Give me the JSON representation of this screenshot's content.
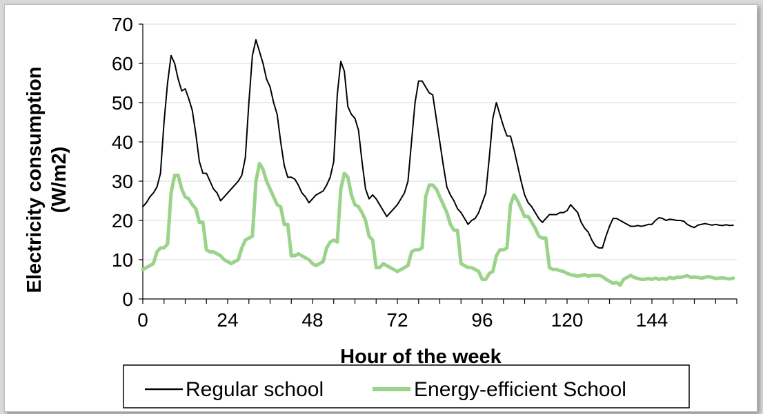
{
  "chart_data": {
    "type": "line",
    "title": "",
    "xlabel": "Hour of the week",
    "ylabel_line1": "Electricity consumption",
    "ylabel_line2": "(W/m2)",
    "xlim": [
      0,
      168
    ],
    "ylim": [
      0,
      70
    ],
    "x_ticks": [
      0,
      24,
      48,
      72,
      96,
      120,
      144
    ],
    "y_ticks": [
      0,
      10,
      20,
      30,
      40,
      50,
      60,
      70
    ],
    "grid": "horizontal",
    "legend_position": "bottom",
    "series": [
      {
        "name": "Regular school",
        "color": "#000000",
        "points": [
          [
            0,
            23.5
          ],
          [
            1,
            24.5
          ],
          [
            2,
            26
          ],
          [
            3,
            27
          ],
          [
            4,
            28.5
          ],
          [
            5,
            32
          ],
          [
            6,
            45
          ],
          [
            7,
            55
          ],
          [
            8,
            62
          ],
          [
            9,
            60
          ],
          [
            10,
            56
          ],
          [
            11,
            53
          ],
          [
            12,
            53.5
          ],
          [
            13,
            51
          ],
          [
            14,
            48
          ],
          [
            15,
            42
          ],
          [
            16,
            35
          ],
          [
            17,
            32
          ],
          [
            18,
            32
          ],
          [
            19,
            30
          ],
          [
            20,
            28
          ],
          [
            21,
            27
          ],
          [
            22,
            25
          ],
          [
            23,
            26
          ],
          [
            24,
            27
          ],
          [
            25,
            28
          ],
          [
            26,
            29
          ],
          [
            27,
            30
          ],
          [
            28,
            31.5
          ],
          [
            29,
            36
          ],
          [
            30,
            50
          ],
          [
            31,
            62
          ],
          [
            32,
            66
          ],
          [
            33,
            63
          ],
          [
            34,
            60
          ],
          [
            35,
            56
          ],
          [
            36,
            54
          ],
          [
            37,
            50
          ],
          [
            38,
            47
          ],
          [
            39,
            40
          ],
          [
            40,
            34
          ],
          [
            41,
            31
          ],
          [
            42,
            31
          ],
          [
            43,
            30.5
          ],
          [
            44,
            29
          ],
          [
            45,
            27
          ],
          [
            46,
            26
          ],
          [
            47,
            24.5
          ],
          [
            48,
            25.5
          ],
          [
            49,
            26.5
          ],
          [
            50,
            27
          ],
          [
            51,
            27.5
          ],
          [
            52,
            29
          ],
          [
            53,
            31
          ],
          [
            54,
            35
          ],
          [
            55,
            52
          ],
          [
            56,
            60.5
          ],
          [
            57,
            58
          ],
          [
            58,
            49
          ],
          [
            59,
            47
          ],
          [
            60,
            46
          ],
          [
            61,
            43
          ],
          [
            62,
            35
          ],
          [
            63,
            28
          ],
          [
            64,
            25.5
          ],
          [
            65,
            26.5
          ],
          [
            66,
            25.5
          ],
          [
            67,
            24
          ],
          [
            68,
            22.5
          ],
          [
            69,
            21
          ],
          [
            70,
            22
          ],
          [
            71,
            23
          ],
          [
            72,
            24
          ],
          [
            73,
            25.5
          ],
          [
            74,
            27
          ],
          [
            75,
            30
          ],
          [
            76,
            40
          ],
          [
            77,
            50
          ],
          [
            78,
            55.5
          ],
          [
            79,
            55.5
          ],
          [
            80,
            54
          ],
          [
            81,
            52.5
          ],
          [
            82,
            52
          ],
          [
            83,
            46
          ],
          [
            84,
            40
          ],
          [
            85,
            34
          ],
          [
            86,
            28.5
          ],
          [
            87,
            26.5
          ],
          [
            88,
            25
          ],
          [
            89,
            23
          ],
          [
            90,
            22
          ],
          [
            91,
            20.5
          ],
          [
            92,
            19
          ],
          [
            93,
            20
          ],
          [
            94,
            20.5
          ],
          [
            95,
            22
          ],
          [
            96,
            24.5
          ],
          [
            97,
            27
          ],
          [
            98,
            36
          ],
          [
            99,
            46
          ],
          [
            100,
            50
          ],
          [
            101,
            47
          ],
          [
            102,
            44
          ],
          [
            103,
            41.5
          ],
          [
            104,
            41.5
          ],
          [
            105,
            38
          ],
          [
            106,
            34
          ],
          [
            107,
            30
          ],
          [
            108,
            26.5
          ],
          [
            109,
            24.5
          ],
          [
            110,
            23.5
          ],
          [
            111,
            22
          ],
          [
            112,
            20.5
          ],
          [
            113,
            19.5
          ],
          [
            114,
            20.5
          ],
          [
            115,
            21.5
          ],
          [
            116,
            21.5
          ],
          [
            117,
            21.5
          ],
          [
            118,
            22
          ],
          [
            119,
            22
          ],
          [
            120,
            22.5
          ],
          [
            121,
            24
          ],
          [
            122,
            23
          ],
          [
            123,
            22
          ],
          [
            124,
            19.5
          ],
          [
            125,
            18
          ],
          [
            126,
            17
          ],
          [
            127,
            15
          ],
          [
            128,
            13.5
          ],
          [
            129,
            13
          ],
          [
            130,
            13
          ],
          [
            131,
            16
          ],
          [
            132,
            18.5
          ],
          [
            133,
            20.5
          ],
          [
            134,
            20.5
          ],
          [
            135,
            20
          ],
          [
            136,
            19.5
          ],
          [
            137,
            19
          ],
          [
            138,
            18.5
          ],
          [
            139,
            18.5
          ],
          [
            140,
            18.7
          ],
          [
            141,
            18.5
          ],
          [
            142,
            18.7
          ],
          [
            143,
            19
          ],
          [
            144,
            19
          ],
          [
            145,
            20
          ],
          [
            146,
            20.7
          ],
          [
            147,
            20.5
          ],
          [
            148,
            20
          ],
          [
            149,
            20.3
          ],
          [
            150,
            20.2
          ],
          [
            151,
            20
          ],
          [
            152,
            20
          ],
          [
            153,
            19.8
          ],
          [
            154,
            19
          ],
          [
            155,
            18.5
          ],
          [
            156,
            18.2
          ],
          [
            157,
            18.8
          ],
          [
            158,
            19
          ],
          [
            159,
            19.2
          ],
          [
            160,
            19
          ],
          [
            161,
            18.8
          ],
          [
            162,
            19
          ],
          [
            163,
            18.8
          ],
          [
            164,
            18.7
          ],
          [
            165,
            18.9
          ],
          [
            166,
            18.7
          ],
          [
            167,
            18.8
          ]
        ]
      },
      {
        "name": "Energy-efficient School",
        "color": "#9bd38a",
        "points": [
          [
            0,
            7.5
          ],
          [
            1,
            8
          ],
          [
            2,
            8.5
          ],
          [
            3,
            9
          ],
          [
            4,
            12
          ],
          [
            5,
            13
          ],
          [
            6,
            13
          ],
          [
            7,
            14
          ],
          [
            8,
            27
          ],
          [
            9,
            31.5
          ],
          [
            10,
            31.5
          ],
          [
            11,
            28
          ],
          [
            12,
            26
          ],
          [
            13,
            25.5
          ],
          [
            14,
            24
          ],
          [
            15,
            23
          ],
          [
            16,
            19.5
          ],
          [
            17,
            19.5
          ],
          [
            18,
            12.5
          ],
          [
            19,
            12
          ],
          [
            20,
            12
          ],
          [
            21,
            11.5
          ],
          [
            22,
            11
          ],
          [
            23,
            10
          ],
          [
            24,
            9.5
          ],
          [
            25,
            9
          ],
          [
            26,
            9.5
          ],
          [
            27,
            10
          ],
          [
            28,
            13
          ],
          [
            29,
            15
          ],
          [
            30,
            15.5
          ],
          [
            31,
            16
          ],
          [
            32,
            30
          ],
          [
            33,
            34.5
          ],
          [
            34,
            33
          ],
          [
            35,
            30
          ],
          [
            36,
            28
          ],
          [
            37,
            26
          ],
          [
            38,
            24
          ],
          [
            39,
            23.5
          ],
          [
            40,
            19
          ],
          [
            41,
            19
          ],
          [
            42,
            11
          ],
          [
            43,
            11
          ],
          [
            44,
            11.5
          ],
          [
            45,
            11
          ],
          [
            46,
            10.5
          ],
          [
            47,
            10
          ],
          [
            48,
            9
          ],
          [
            49,
            8.5
          ],
          [
            50,
            9
          ],
          [
            51,
            9.5
          ],
          [
            52,
            13
          ],
          [
            53,
            14.5
          ],
          [
            54,
            15
          ],
          [
            55,
            14.5
          ],
          [
            56,
            28
          ],
          [
            57,
            32
          ],
          [
            58,
            31
          ],
          [
            59,
            26.5
          ],
          [
            60,
            24
          ],
          [
            61,
            23.5
          ],
          [
            62,
            22
          ],
          [
            63,
            20
          ],
          [
            64,
            16
          ],
          [
            65,
            15
          ],
          [
            66,
            8
          ],
          [
            67,
            8
          ],
          [
            68,
            9
          ],
          [
            69,
            8.5
          ],
          [
            70,
            8
          ],
          [
            71,
            7.5
          ],
          [
            72,
            7
          ],
          [
            73,
            7.5
          ],
          [
            74,
            8
          ],
          [
            75,
            8.5
          ],
          [
            76,
            12
          ],
          [
            77,
            12.5
          ],
          [
            78,
            12.5
          ],
          [
            79,
            13
          ],
          [
            80,
            26
          ],
          [
            81,
            29
          ],
          [
            82,
            29
          ],
          [
            83,
            28
          ],
          [
            84,
            26
          ],
          [
            85,
            24
          ],
          [
            86,
            22
          ],
          [
            87,
            19
          ],
          [
            88,
            17.5
          ],
          [
            89,
            17.5
          ],
          [
            90,
            9
          ],
          [
            91,
            8.5
          ],
          [
            92,
            8
          ],
          [
            93,
            8
          ],
          [
            94,
            7.5
          ],
          [
            95,
            7
          ],
          [
            96,
            5
          ],
          [
            97,
            5
          ],
          [
            98,
            6.5
          ],
          [
            99,
            7
          ],
          [
            100,
            11
          ],
          [
            101,
            12.5
          ],
          [
            102,
            12.5
          ],
          [
            103,
            13
          ],
          [
            104,
            24
          ],
          [
            105,
            26.5
          ],
          [
            106,
            25
          ],
          [
            107,
            23
          ],
          [
            108,
            21
          ],
          [
            109,
            21
          ],
          [
            110,
            19.5
          ],
          [
            111,
            18
          ],
          [
            112,
            16
          ],
          [
            113,
            15.5
          ],
          [
            114,
            15.5
          ],
          [
            115,
            8
          ],
          [
            116,
            7.5
          ],
          [
            117,
            7.5
          ],
          [
            118,
            7.2
          ],
          [
            119,
            7
          ],
          [
            120,
            6.5
          ],
          [
            121,
            6.2
          ],
          [
            122,
            6
          ],
          [
            123,
            5.8
          ],
          [
            124,
            6
          ],
          [
            125,
            6.2
          ],
          [
            126,
            5.8
          ],
          [
            127,
            6
          ],
          [
            128,
            6
          ],
          [
            129,
            6
          ],
          [
            130,
            5.7
          ],
          [
            131,
            5
          ],
          [
            132,
            4.5
          ],
          [
            133,
            4
          ],
          [
            134,
            4.2
          ],
          [
            135,
            3.5
          ],
          [
            136,
            5
          ],
          [
            137,
            5.5
          ],
          [
            138,
            6
          ],
          [
            139,
            5.5
          ],
          [
            140,
            5.2
          ],
          [
            141,
            5
          ],
          [
            142,
            5
          ],
          [
            143,
            5.2
          ],
          [
            144,
            5
          ],
          [
            145,
            5.3
          ],
          [
            146,
            5
          ],
          [
            147,
            5.2
          ],
          [
            148,
            5
          ],
          [
            149,
            5.5
          ],
          [
            150,
            5.2
          ],
          [
            151,
            5.5
          ],
          [
            152,
            5.5
          ],
          [
            153,
            5.7
          ],
          [
            154,
            5.9
          ],
          [
            155,
            5.5
          ],
          [
            156,
            5.6
          ],
          [
            157,
            5.5
          ],
          [
            158,
            5.3
          ],
          [
            159,
            5.5
          ],
          [
            160,
            5.7
          ],
          [
            161,
            5.5
          ],
          [
            162,
            5.2
          ],
          [
            163,
            5.3
          ],
          [
            164,
            5.4
          ],
          [
            165,
            5.2
          ],
          [
            166,
            5.1
          ],
          [
            167,
            5.3
          ]
        ]
      }
    ]
  }
}
